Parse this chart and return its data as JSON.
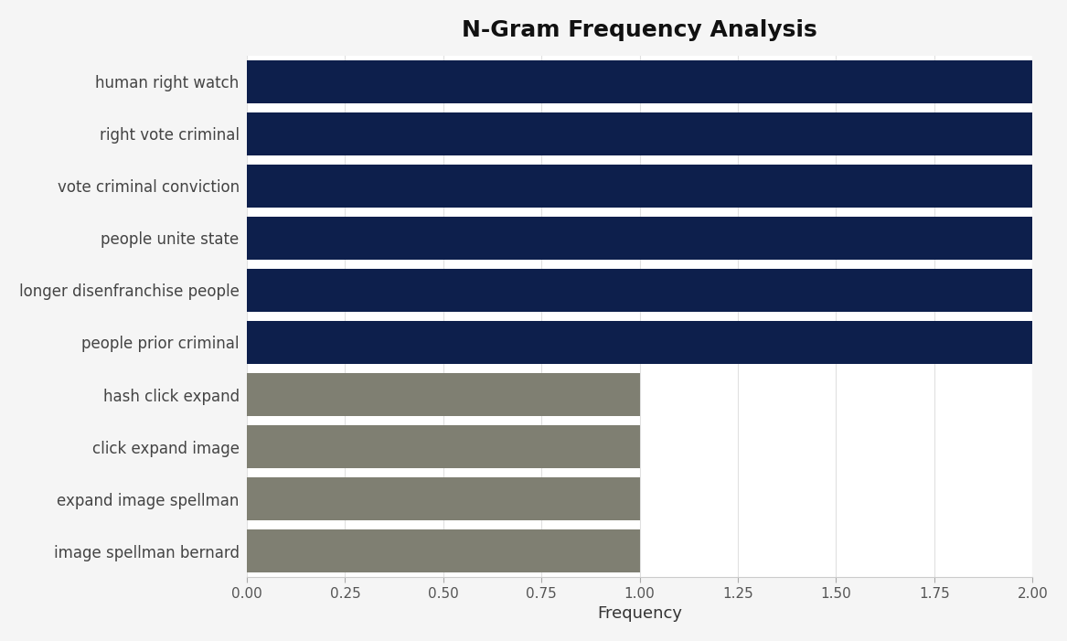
{
  "title": "N-Gram Frequency Analysis",
  "categories": [
    "image spellman bernard",
    "expand image spellman",
    "click expand image",
    "hash click expand",
    "people prior criminal",
    "longer disenfranchise people",
    "people unite state",
    "vote criminal conviction",
    "right vote criminal",
    "human right watch"
  ],
  "values": [
    1,
    1,
    1,
    1,
    2,
    2,
    2,
    2,
    2,
    2
  ],
  "bar_colors": [
    "#7f7f72",
    "#7f7f72",
    "#7f7f72",
    "#7f7f72",
    "#0d1f4c",
    "#0d1f4c",
    "#0d1f4c",
    "#0d1f4c",
    "#0d1f4c",
    "#0d1f4c"
  ],
  "xlabel": "Frequency",
  "ylabel": "",
  "xlim": [
    0,
    2.0
  ],
  "xticks": [
    0.0,
    0.25,
    0.5,
    0.75,
    1.0,
    1.25,
    1.5,
    1.75,
    2.0
  ],
  "figure_bg_color": "#f5f5f5",
  "plot_bg_color": "#ffffff",
  "title_fontsize": 18,
  "label_fontsize": 12,
  "tick_fontsize": 11,
  "xlabel_fontsize": 13,
  "bar_height": 0.82
}
